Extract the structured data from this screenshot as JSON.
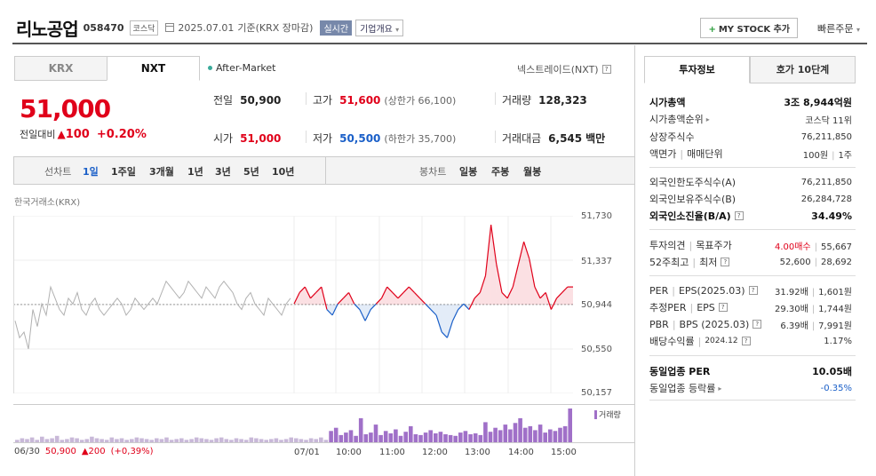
{
  "header": {
    "company": "리노공업",
    "code": "058470",
    "market": "코스닥",
    "date": "2025.07.01",
    "basis": "기준(KRX 장마감)",
    "realtime": "실시간",
    "overview": "기업개요",
    "mystock": "MY STOCK 추가",
    "quick_order": "빠른주문"
  },
  "market_tabs": [
    "KRX",
    "NXT"
  ],
  "quote": {
    "price": "51,000",
    "change_label": "전일대비",
    "change": "100",
    "change_pct": "+0.20%",
    "session": "After-Market",
    "exchange_name": "넥스트레이드(NXT)",
    "prev_label": "전일",
    "prev": "50,900",
    "high_label": "고가",
    "high": "51,600",
    "upper_limit": "(상한가 66,100)",
    "volume_label": "거래량",
    "volume": "128,323",
    "open_label": "시가",
    "open": "51,000",
    "low_label": "저가",
    "low": "50,500",
    "lower_limit": "(하한가 35,700)",
    "amount_label": "거래대금",
    "amount": "6,545",
    "amount_unit": "백만"
  },
  "period_bar": {
    "line_label": "선차트",
    "line_items": [
      "1일",
      "1주일",
      "3개월",
      "1년",
      "3년",
      "5년",
      "10년"
    ],
    "active": "1일",
    "candle_label": "봉차트",
    "candle_items": [
      "일봉",
      "주봉",
      "월봉"
    ]
  },
  "chart_exchange": "한국거래소(KRX)",
  "volume_label": "거래량",
  "prev_day": {
    "date": "06/30",
    "close": "50,900",
    "change": "200",
    "pct": "(+0,39%)"
  },
  "colors": {
    "up": "#e0001a",
    "down": "#1a5fc8",
    "prev": "#b0b0b0",
    "volume": "#a070c8"
  },
  "chart_data": {
    "type": "line",
    "title": "",
    "y_ticks": [
      "51,730",
      "51,337",
      "50,944",
      "50,550",
      "50,157"
    ],
    "ylim": [
      50157,
      51730
    ],
    "reference": 50944,
    "x_ticks": [
      "07/01",
      "10:00",
      "11:00",
      "12:00",
      "13:00",
      "14:00",
      "15:00"
    ],
    "series": [
      {
        "values": [
          50800,
          50650,
          50700,
          50550,
          50900,
          50750,
          50950,
          50850,
          51100,
          51000,
          50900,
          50850,
          51000,
          50950,
          51050,
          50900,
          50850,
          50950,
          51000,
          50900,
          50850,
          50900,
          50950,
          51000,
          50950,
          50850,
          50900,
          51000,
          50950,
          50900,
          50950,
          51000,
          50950,
          51050,
          51150,
          51100,
          51050,
          51000,
          51050,
          51150,
          51100,
          51050,
          51000,
          51100,
          51050,
          51000,
          51100,
          51150,
          51100,
          51050,
          50950,
          50900,
          51000,
          51050,
          50950,
          50900,
          50850,
          51000,
          50950,
          50900,
          50850,
          50950,
          51000
        ]
      },
      {
        "values": [
          50950,
          51050,
          51100,
          51000,
          51050,
          51100,
          50900,
          50850,
          50950,
          51000,
          51050,
          50950,
          50900,
          50800,
          50900,
          50950,
          51000,
          51100,
          51050,
          51000,
          51050,
          51100,
          51050,
          51000,
          50950,
          50900,
          50850,
          50700,
          50650,
          50800,
          50900,
          50950,
          50900,
          51000,
          51050,
          51200,
          51650,
          51300,
          51050,
          51000,
          51100,
          51300,
          51500,
          51350,
          51100,
          51000,
          51050,
          50900,
          51000,
          51050,
          51100,
          51100
        ]
      }
    ],
    "volume": [
      3,
      5,
      4,
      6,
      3,
      7,
      4,
      5,
      8,
      3,
      4,
      6,
      5,
      3,
      4,
      7,
      5,
      4,
      3,
      6,
      4,
      5,
      3,
      4,
      6,
      5,
      4,
      3,
      5,
      4,
      6,
      3,
      4,
      5,
      3,
      4,
      6,
      5,
      4,
      3,
      5,
      6,
      4,
      3,
      5,
      4,
      3,
      6,
      5,
      4,
      3,
      4,
      5,
      3,
      4,
      6,
      5,
      4,
      3,
      5,
      4,
      6,
      3,
      14,
      18,
      9,
      12,
      15,
      8,
      30,
      10,
      12,
      22,
      9,
      14,
      11,
      16,
      8,
      13,
      20,
      10,
      9,
      12,
      15,
      11,
      13,
      10,
      9,
      8,
      12,
      14,
      10,
      11,
      9,
      25,
      13,
      18,
      15,
      22,
      16,
      24,
      30,
      18,
      20,
      15,
      22,
      12,
      16,
      14,
      18,
      20,
      42
    ]
  },
  "right_panel": {
    "tabs": [
      "투자정보",
      "호가 10단계"
    ],
    "market_cap": {
      "k": "시가총액",
      "v": "3조 8,944억원"
    },
    "cap_rank": {
      "k": "시가총액순위",
      "v": "코스닥 11위"
    },
    "shares": {
      "k": "상장주식수",
      "v": "76,211,850"
    },
    "par": {
      "k1": "액면가",
      "k2": "매매단위",
      "v1": "100원",
      "v2": "1주"
    },
    "foreign_limit": {
      "k": "외국인한도주식수(A)",
      "v": "76,211,850"
    },
    "foreign_hold": {
      "k": "외국인보유주식수(B)",
      "v": "26,284,728"
    },
    "foreign_rate": {
      "k": "외국인소진율(B/A)",
      "v": "34.49%"
    },
    "opinion": {
      "k1": "투자의견",
      "k2": "목표주가",
      "v1": "4.00매수",
      "v2": "55,667"
    },
    "week52": {
      "k1": "52주최고",
      "k2": "최저",
      "v1": "52,600",
      "v2": "28,692"
    },
    "per": {
      "k1": "PER",
      "k2": "EPS(2025.03)",
      "v1": "31.92배",
      "v2": "1,601원"
    },
    "est_per": {
      "k1": "추정PER",
      "k2": "EPS",
      "v1": "29.30배",
      "v2": "1,744원"
    },
    "pbr": {
      "k1": "PBR",
      "k2": "BPS (2025.03)",
      "v1": "6.39배",
      "v2": "7,991원"
    },
    "dividend": {
      "k1": "배당수익률",
      "k2": "2024.12",
      "v": "1.17%"
    },
    "sector_per": {
      "k": "동일업종 PER",
      "v": "10.05배"
    },
    "sector_chg": {
      "k": "동일업종 등락률",
      "v": "-0.35%"
    }
  }
}
